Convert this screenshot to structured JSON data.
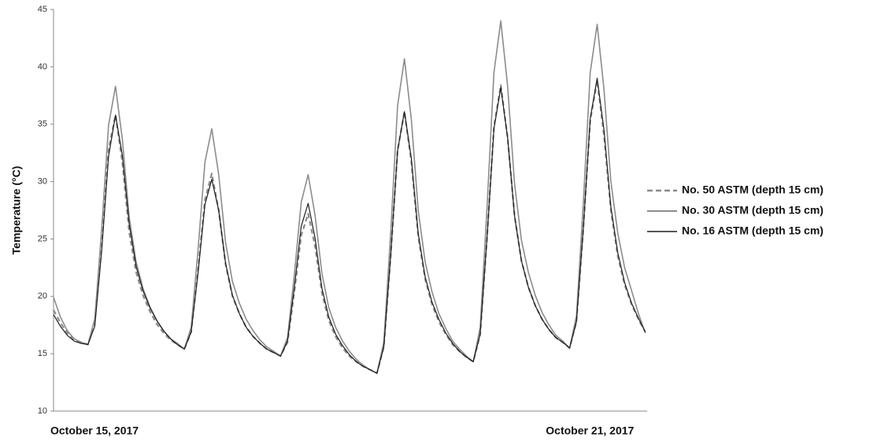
{
  "chart_data": {
    "type": "line",
    "y_label": "Temperature (°C)",
    "categories": [
      "October 15, 2017",
      null,
      null,
      null,
      null,
      null,
      null,
      null,
      null,
      null,
      null,
      null,
      null,
      null,
      null,
      null,
      null,
      null,
      null,
      null,
      null,
      null,
      null,
      null,
      null,
      null,
      null,
      null,
      null,
      null,
      null,
      null,
      null,
      null,
      null,
      null,
      null,
      null,
      null,
      null,
      null,
      null,
      null,
      null,
      null,
      null,
      null,
      null,
      null,
      null,
      null,
      null,
      null,
      null,
      null,
      null,
      null,
      null,
      null,
      null,
      null,
      null,
      null,
      null,
      null,
      null,
      null,
      null,
      null,
      null,
      null,
      null,
      "October 21, 2017",
      null,
      null,
      null,
      null,
      null,
      null,
      null,
      null,
      null,
      null,
      null,
      null,
      null,
      null
    ],
    "series": [
      {
        "name": "No. 50 ASTM (depth 15 cm)",
        "color": "#8a8a8a",
        "dash": true,
        "width": 2.2,
        "values": [
          18.8,
          17.7,
          16.8,
          16.2,
          16.0,
          15.8,
          17.8,
          24.8,
          32.8,
          35.8,
          31.7,
          25.6,
          22.1,
          20.1,
          18.7,
          17.6,
          16.8,
          16.2,
          15.8,
          15.4,
          16.9,
          22.3,
          28.4,
          30.7,
          27.5,
          22.8,
          20.0,
          18.5,
          17.3,
          16.5,
          15.9,
          15.4,
          15.1,
          14.8,
          16.0,
          20.4,
          25.3,
          27.2,
          24.4,
          20.3,
          17.9,
          16.5,
          15.5,
          14.8,
          14.3,
          13.9,
          13.6,
          13.3,
          15.6,
          23.6,
          32.7,
          36.1,
          31.7,
          25.2,
          21.5,
          19.3,
          17.8,
          16.7,
          15.8,
          15.2,
          14.7,
          14.3,
          16.7,
          25.1,
          34.8,
          38.4,
          33.8,
          27.0,
          23.1,
          20.8,
          19.2,
          18.0,
          17.1,
          16.4,
          16.0,
          15.5,
          17.8,
          26.0,
          35.3,
          38.8,
          34.0,
          27.5,
          23.5,
          21.0,
          19.3,
          18.0,
          16.9
        ]
      },
      {
        "name": "No. 30 ASTM (depth 15 cm)",
        "color": "#8c8c8c",
        "dash": false,
        "width": 1.6,
        "values": [
          19.9,
          18.2,
          17.0,
          16.3,
          16.0,
          15.8,
          18.05,
          25.9,
          34.9,
          38.3,
          33.7,
          26.9,
          23.0,
          20.7,
          19.1,
          17.9,
          17.0,
          16.3,
          15.9,
          15.4,
          17.3,
          24.0,
          31.7,
          34.6,
          30.6,
          24.7,
          21.3,
          19.4,
          18.0,
          17.0,
          16.2,
          15.6,
          15.2,
          14.8,
          16.4,
          21.9,
          28.2,
          30.6,
          27.1,
          22.0,
          19.0,
          17.3,
          16.1,
          15.2,
          14.5,
          14.0,
          13.6,
          13.3,
          16.0,
          25.6,
          36.6,
          40.7,
          35.4,
          27.5,
          23.0,
          20.4,
          18.5,
          17.2,
          16.1,
          15.4,
          14.8,
          14.3,
          17.3,
          27.7,
          39.5,
          44.0,
          38.3,
          29.8,
          24.9,
          22.1,
          20.1,
          18.6,
          17.5,
          16.6,
          16.1,
          15.5,
          18.3,
          28.2,
          39.5,
          43.7,
          38.0,
          30.0,
          25.5,
          22.5,
          20.5,
          18.5,
          16.8
        ]
      },
      {
        "name": "No. 16 ASTM (depth 15 cm)",
        "color": "#1e1e1e",
        "dash": false,
        "width": 1.2,
        "values": [
          18.4,
          17.4,
          16.6,
          16.1,
          15.9,
          15.8,
          17.4,
          24.0,
          32.2,
          35.8,
          32.3,
          26.3,
          22.6,
          20.5,
          19.0,
          17.9,
          17.0,
          16.3,
          15.8,
          15.4,
          16.9,
          22.0,
          28.0,
          30.2,
          27.5,
          22.9,
          20.1,
          18.5,
          17.3,
          16.5,
          15.9,
          15.4,
          15.1,
          14.8,
          16.1,
          20.8,
          26.1,
          28.1,
          25.1,
          20.7,
          18.2,
          16.7,
          15.7,
          14.9,
          14.3,
          13.9,
          13.6,
          13.3,
          15.6,
          23.6,
          32.7,
          36.1,
          32.0,
          25.5,
          21.7,
          19.5,
          18.0,
          16.8,
          15.9,
          15.2,
          14.7,
          14.3,
          16.7,
          25.1,
          34.6,
          38.2,
          33.8,
          27.0,
          23.1,
          20.8,
          19.2,
          18.0,
          17.1,
          16.4,
          16.0,
          15.5,
          17.8,
          26.0,
          35.5,
          39.0,
          34.5,
          27.8,
          23.8,
          21.2,
          19.4,
          18.1,
          16.9
        ]
      }
    ],
    "ylim": [
      10,
      45
    ],
    "yticks": [
      10,
      15,
      20,
      25,
      30,
      35,
      40,
      45
    ],
    "grid": false,
    "legend": "right"
  }
}
